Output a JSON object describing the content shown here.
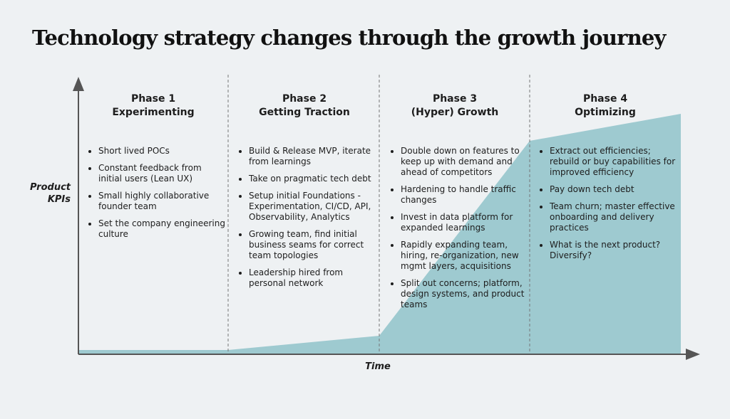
{
  "header": {
    "title": "Technology strategy changes through the growth journey"
  },
  "axes": {
    "y_label": "Product KPIs",
    "x_label": "Time"
  },
  "phases": [
    {
      "number": "Phase 1",
      "name": "Experimenting",
      "bullets": [
        "Short lived POCs",
        "Constant feedback from initial users (Lean UX)",
        "Small highly collaborative founder team",
        "Set the company engineering culture"
      ]
    },
    {
      "number": "Phase 2",
      "name": "Getting Traction",
      "bullets": [
        "Build & Release MVP, iterate from learnings",
        "Take on pragmatic tech debt",
        "Setup initial Foundations - Experimentation, CI/CD, API, Observability, Analytics",
        "Growing team, find initial business seams for correct team topologies",
        "Leadership hired from personal network"
      ]
    },
    {
      "number": "Phase 3",
      "name": "(Hyper) Growth",
      "bullets": [
        "Double down on features to keep up with demand and ahead of competitors",
        "Hardening to handle traffic changes",
        "Invest in data platform for expanded learnings",
        "Rapidly expanding team, hiring, re-organization, new mgmt layers, acquisitions",
        "Split out concerns; platform, design systems, and product teams"
      ]
    },
    {
      "number": "Phase 4",
      "name": "Optimizing",
      "bullets": [
        "Extract out efficiencies; rebuild or buy capabilities for improved efficiency",
        "Pay down tech debt",
        "Team churn; master effective onboarding and delivery practices",
        "What is the next product? Diversify?"
      ]
    }
  ]
}
